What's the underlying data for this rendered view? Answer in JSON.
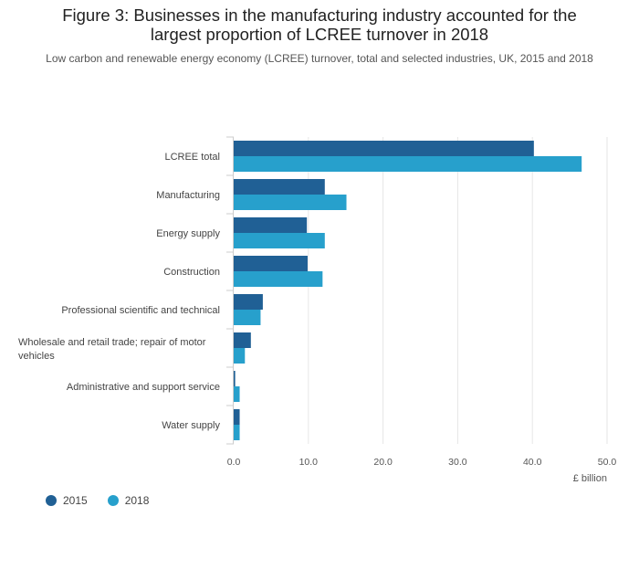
{
  "title_lines": [
    "Figure 3: Businesses in the manufacturing industry accounted for the",
    "largest proportion of LCREE turnover in 2018"
  ],
  "subtitle": "Low carbon and renewable energy economy (LCREE) turnover, total and selected industries, UK, 2015 and 2018",
  "chart_data": {
    "type": "bar",
    "orientation": "horizontal",
    "title": "Figure 3: Businesses in the manufacturing industry accounted for the largest proportion of LCREE turnover in 2018",
    "subtitle": "Low carbon and renewable energy economy (LCREE) turnover, total and selected industries, UK, 2015 and 2018",
    "xlabel": "£ billion",
    "xlim": [
      0,
      50
    ],
    "xticks": [
      "0.0",
      "10.0",
      "20.0",
      "30.0",
      "40.0",
      "50.0"
    ],
    "grid": true,
    "legend_position": "bottom-left",
    "categories": [
      "LCREE total",
      "Manufacturing",
      "Energy supply",
      "Construction",
      "Professional scientific and technical",
      "Wholesale and retail trade; repair of motor vehicles",
      "Administrative and support service",
      "Water supply"
    ],
    "category_label_lines": [
      [
        "LCREE total"
      ],
      [
        "Manufacturing"
      ],
      [
        "Energy supply"
      ],
      [
        "Construction"
      ],
      [
        "Professional scientific and technical"
      ],
      [
        "Wholesale and retail trade; repair of motor",
        "vehicles"
      ],
      [
        "Administrative and support service"
      ],
      [
        "Water supply"
      ]
    ],
    "series": [
      {
        "name": "2015",
        "color": "#206095",
        "values": [
          40.2,
          12.2,
          9.8,
          9.9,
          3.9,
          2.3,
          0.2,
          0.8
        ]
      },
      {
        "name": "2018",
        "color": "#27a0cc",
        "values": [
          46.6,
          15.1,
          12.2,
          11.9,
          3.6,
          1.5,
          0.8,
          0.8
        ]
      }
    ]
  }
}
